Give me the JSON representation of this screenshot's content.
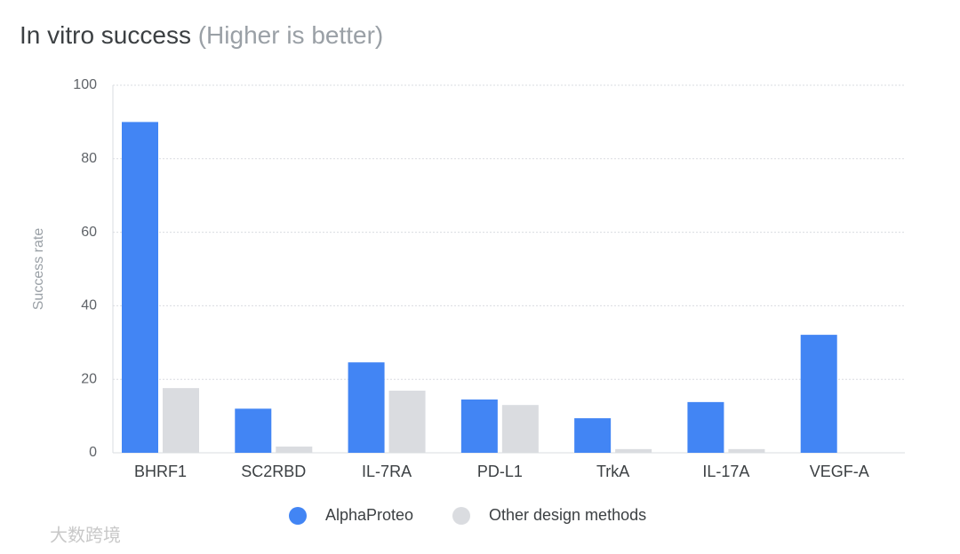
{
  "chart_data": {
    "type": "bar",
    "title": "In vitro success",
    "subtitle": "(Higher is better)",
    "y_label": "Success rate",
    "categories": [
      "BHRF1",
      "SC2RBD",
      "IL-7RA",
      "PD-L1",
      "TrkA",
      "IL-17A",
      "VEGF-A"
    ],
    "series": [
      {
        "name": "AlphaProteo",
        "color": "#4285f4",
        "values": [
          90,
          12,
          24.6,
          14.5,
          9.4,
          13.8,
          32.1
        ]
      },
      {
        "name": "Other design methods",
        "color": "#dadce0",
        "values": [
          17.6,
          1.7,
          16.9,
          13,
          1,
          1,
          null
        ]
      }
    ],
    "ylim": [
      0,
      100
    ],
    "yticks": [
      0,
      20,
      40,
      60,
      80,
      100
    ],
    "grid": true,
    "watermark": "大数跨境"
  }
}
